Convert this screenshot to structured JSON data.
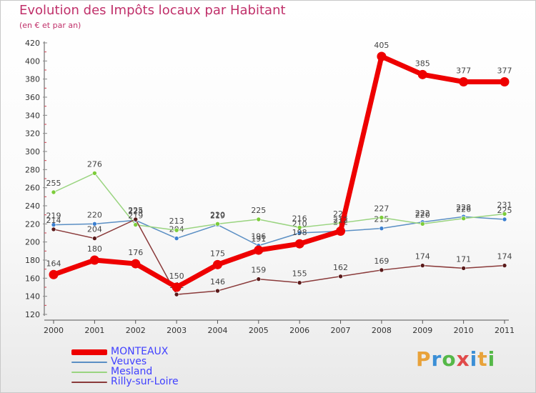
{
  "title": "Evolution des Impôts locaux par Habitant",
  "subtitle": "(en € et par an)",
  "brand": {
    "letters": [
      "P",
      "r",
      "o",
      "x",
      "i",
      "t",
      "i"
    ],
    "colors": [
      "#e8a23a",
      "#3b8fd6",
      "#55b848",
      "#e04a4a",
      "#3b8fd6",
      "#e8a23a",
      "#55b848"
    ]
  },
  "chart_data": {
    "type": "line",
    "title": "Evolution des Impôts locaux par Habitant",
    "subtitle": "(en € et par an)",
    "xlabel": "",
    "ylabel": "",
    "ylim": [
      120,
      420
    ],
    "yticks": [
      120,
      140,
      160,
      180,
      200,
      220,
      240,
      260,
      280,
      300,
      320,
      340,
      360,
      380,
      400,
      420
    ],
    "categories": [
      "2000",
      "2001",
      "2002",
      "2003",
      "2004",
      "2005",
      "2006",
      "2007",
      "2008",
      "2009",
      "2010",
      "2011"
    ],
    "series": [
      {
        "name": "Veuves",
        "color": "#5b8fc4",
        "marker": "#3b7fd0",
        "values": [
          219,
          220,
          224,
          204,
          219,
          196,
          210,
          212,
          215,
          222,
          228,
          225
        ],
        "labels": [
          "219",
          "220",
          "224",
          "204",
          "219",
          "196",
          "210",
          "212",
          "215",
          "222",
          "228",
          "225"
        ]
      },
      {
        "name": "Mesland",
        "color": "#9ad480",
        "marker": "#7ccc3a",
        "values": [
          255,
          276,
          219,
          213,
          220,
          225,
          216,
          221,
          227,
          220,
          226,
          231
        ],
        "labels": [
          "255",
          "276",
          "219",
          "213",
          "220",
          "225",
          "216",
          "221",
          "227",
          "220",
          "226",
          "231"
        ]
      },
      {
        "name": "Rilly-sur-Loire",
        "color": "#8a3a3a",
        "marker": "#5a1a1a",
        "values": [
          214,
          204,
          225,
          142,
          146,
          159,
          155,
          162,
          169,
          174,
          171,
          174
        ],
        "labels": [
          "214",
          "204",
          "225",
          "142",
          "146",
          "159",
          "155",
          "162",
          "169",
          "174",
          "171",
          "174"
        ]
      },
      {
        "name": "MONTEAUX",
        "color": "#ee0000",
        "marker": "#ee0000",
        "values": [
          164,
          180,
          176,
          150,
          175,
          191,
          198,
          212,
          405,
          385,
          377,
          377
        ],
        "labels": [
          "164",
          "180",
          "176",
          "150",
          "175",
          "191",
          "198",
          "212",
          "405",
          "385",
          "377",
          "377"
        ]
      }
    ],
    "legend_order": [
      "MONTEAUX",
      "Veuves",
      "Mesland",
      "Rilly-sur-Loire"
    ],
    "legend": "bottom-left",
    "grid": false
  }
}
